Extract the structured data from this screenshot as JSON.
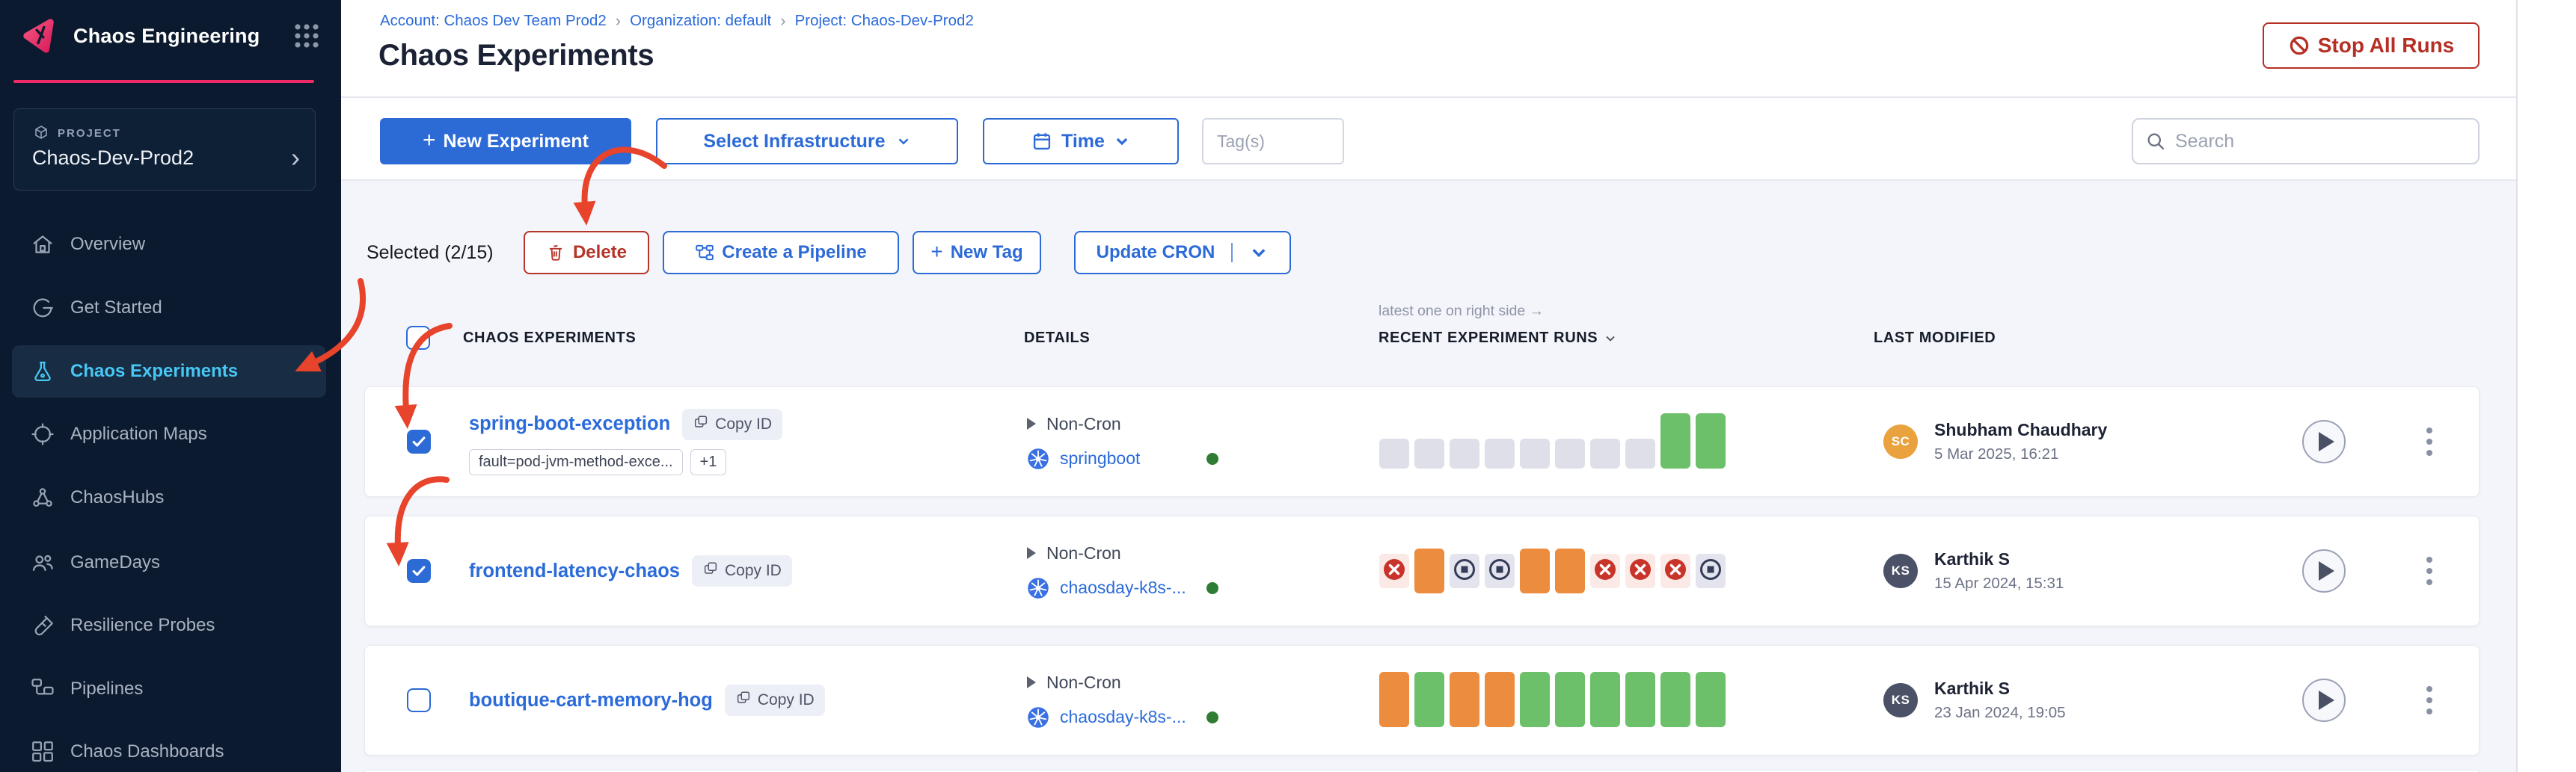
{
  "sidebar": {
    "brand": "Chaos Engineering",
    "project_label": "PROJECT",
    "project_name": "Chaos-Dev-Prod2",
    "items": [
      {
        "id": "overview",
        "label": "Overview",
        "icon": "home-icon",
        "selected": false
      },
      {
        "id": "get-started",
        "label": "Get Started",
        "icon": "get-started-icon",
        "selected": false
      },
      {
        "id": "chaos-experiments",
        "label": "Chaos Experiments",
        "icon": "flask-icon",
        "selected": true
      },
      {
        "id": "application-maps",
        "label": "Application Maps",
        "icon": "app-maps-icon",
        "selected": false
      },
      {
        "id": "chaoshubs",
        "label": "ChaosHubs",
        "icon": "hubs-icon",
        "selected": false
      },
      {
        "id": "gamedays",
        "label": "GameDays",
        "icon": "gamedays-icon",
        "selected": false
      },
      {
        "id": "resilience-probes",
        "label": "Resilience Probes",
        "icon": "probe-icon",
        "selected": false
      },
      {
        "id": "pipelines",
        "label": "Pipelines",
        "icon": "pipelines-icon",
        "selected": false
      },
      {
        "id": "chaos-dashboards",
        "label": "Chaos Dashboards",
        "icon": "dashboards-icon",
        "selected": false
      }
    ]
  },
  "header": {
    "breadcrumbs": [
      "Account: Chaos Dev Team Prod2",
      "Organization: default",
      "Project: Chaos-Dev-Prod2"
    ],
    "separator": "›",
    "title": "Chaos Experiments",
    "stop_all_runs_label": "Stop All Runs"
  },
  "toolbar": {
    "new_experiment_label": "New Experiment",
    "select_infrastructure_label": "Select Infrastructure",
    "time_label": "Time",
    "tags_placeholder": "Tag(s)",
    "search_placeholder": "Search"
  },
  "selection_bar": {
    "selected_count_label": "Selected (2/15)",
    "delete_label": "Delete",
    "create_pipeline_label": "Create a Pipeline",
    "new_tag_label": "New Tag",
    "update_cron_label": "Update CRON"
  },
  "table": {
    "runs_note": "latest one on right side →",
    "columns": {
      "experiments": "CHAOS EXPERIMENTS",
      "details": "DETAILS",
      "runs": "RECENT EXPERIMENT RUNS",
      "last_modified": "LAST MODIFIED"
    }
  },
  "copy_id_label": "Copy ID",
  "experiments": [
    {
      "name": "spring-boot-exception",
      "checked": true,
      "tags": [
        "fault=pod-jvm-method-exce...",
        "+1"
      ],
      "schedule": "Non-Cron",
      "infrastructure": "springboot",
      "infra_status": "connected",
      "runs_style": "bars",
      "runs": [
        "empty",
        "empty",
        "empty",
        "empty",
        "empty",
        "empty",
        "empty",
        "empty",
        "completed",
        "completed"
      ],
      "modified_by": {
        "initials": "SC",
        "name": "Shubham Chaudhary",
        "date": "5 Mar 2025, 16:21",
        "avatar_color": "#eaa23e"
      }
    },
    {
      "name": "frontend-latency-chaos",
      "checked": true,
      "tags": [],
      "schedule": "Non-Cron",
      "infrastructure": "chaosday-k8s-...",
      "infra_status": "connected",
      "runs_style": "icons",
      "runs": [
        "failed",
        "error",
        "stopped",
        "stopped",
        "error",
        "error",
        "failed",
        "failed",
        "failed",
        "stopped"
      ],
      "modified_by": {
        "initials": "KS",
        "name": "Karthik S",
        "date": "15 Apr 2024, 15:31",
        "avatar_color": "#4b5166"
      }
    },
    {
      "name": "boutique-cart-memory-hog",
      "checked": false,
      "tags": [],
      "schedule": "Non-Cron",
      "infrastructure": "chaosday-k8s-...",
      "infra_status": "connected",
      "runs_style": "bars",
      "runs": [
        "error",
        "completed",
        "error",
        "error",
        "completed",
        "completed",
        "completed",
        "completed",
        "completed",
        "completed"
      ],
      "modified_by": {
        "initials": "KS",
        "name": "Karthik S",
        "date": "23 Jan 2024, 19:05",
        "avatar_color": "#4b5166"
      }
    }
  ],
  "colors": {
    "accent_blue": "#2c6ad6",
    "brand_pink": "#ee2a68",
    "danger_red": "#b5352a",
    "arrow_red": "#e8432b",
    "run_green": "#6cc06a",
    "run_orange": "#ec8c3e",
    "run_gray": "#dedfe9",
    "run_failed_red": "#c9342a",
    "connected_green": "#2f7d33",
    "selected_cyan": "#47c7f3"
  }
}
